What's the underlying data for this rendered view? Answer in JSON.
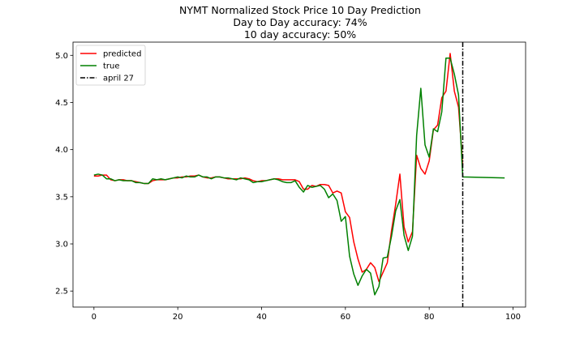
{
  "chart_data": {
    "type": "line",
    "title_lines": [
      "NYMT Normalized Stock Price 10 Day Prediction",
      "Day to Day accuracy: 74%",
      "10 day accuracy: 50%"
    ],
    "xlabel": "",
    "ylabel": "",
    "xlim": [
      -5,
      103
    ],
    "ylim": [
      2.33,
      5.14
    ],
    "xticks": [
      0,
      20,
      40,
      60,
      80,
      100
    ],
    "yticks": [
      2.5,
      3.0,
      3.5,
      4.0,
      4.5,
      5.0
    ],
    "xtick_labels": [
      "0",
      "20",
      "40",
      "60",
      "80",
      "100"
    ],
    "ytick_labels": [
      "2.5",
      "3.0",
      "3.5",
      "4.0",
      "4.5",
      "5.0"
    ],
    "grid": false,
    "legend_position": "top-left",
    "series": [
      {
        "name": "predicted",
        "color": "#ff0000",
        "style": "solid",
        "x": [
          0,
          1,
          2,
          3,
          4,
          5,
          6,
          7,
          8,
          9,
          10,
          11,
          12,
          13,
          14,
          15,
          16,
          17,
          18,
          19,
          20,
          21,
          22,
          23,
          24,
          25,
          26,
          27,
          28,
          29,
          30,
          31,
          32,
          33,
          34,
          35,
          36,
          37,
          38,
          39,
          40,
          41,
          42,
          43,
          44,
          45,
          46,
          47,
          48,
          49,
          50,
          51,
          52,
          53,
          54,
          55,
          56,
          57,
          58,
          59,
          60,
          61,
          62,
          63,
          64,
          65,
          66,
          67,
          68,
          69,
          70,
          71,
          72,
          73,
          74,
          75,
          76,
          77,
          78,
          79,
          80,
          81,
          82,
          83,
          84,
          85,
          86,
          87,
          88
        ],
        "y": [
          3.72,
          3.72,
          3.73,
          3.73,
          3.68,
          3.67,
          3.68,
          3.68,
          3.67,
          3.67,
          3.66,
          3.65,
          3.64,
          3.64,
          3.67,
          3.68,
          3.68,
          3.68,
          3.69,
          3.7,
          3.7,
          3.71,
          3.71,
          3.72,
          3.72,
          3.73,
          3.71,
          3.7,
          3.7,
          3.71,
          3.71,
          3.7,
          3.69,
          3.69,
          3.69,
          3.69,
          3.7,
          3.69,
          3.67,
          3.66,
          3.67,
          3.67,
          3.68,
          3.69,
          3.69,
          3.68,
          3.68,
          3.68,
          3.68,
          3.66,
          3.58,
          3.58,
          3.62,
          3.61,
          3.63,
          3.63,
          3.62,
          3.54,
          3.56,
          3.54,
          3.34,
          3.28,
          3.02,
          2.84,
          2.7,
          2.73,
          2.8,
          2.75,
          2.6,
          2.7,
          2.8,
          3.14,
          3.42,
          3.74,
          3.18,
          3.02,
          3.13,
          3.94,
          3.8,
          3.74,
          3.88,
          4.21,
          4.26,
          4.55,
          4.62,
          5.02,
          4.62,
          4.45,
          3.84
        ]
      },
      {
        "name": "true",
        "color": "#008000",
        "style": "solid",
        "x": [
          0,
          1,
          2,
          3,
          4,
          5,
          6,
          7,
          8,
          9,
          10,
          11,
          12,
          13,
          14,
          15,
          16,
          17,
          18,
          19,
          20,
          21,
          22,
          23,
          24,
          25,
          26,
          27,
          28,
          29,
          30,
          31,
          32,
          33,
          34,
          35,
          36,
          37,
          38,
          39,
          40,
          41,
          42,
          43,
          44,
          45,
          46,
          47,
          48,
          49,
          50,
          51,
          52,
          53,
          54,
          55,
          56,
          57,
          58,
          59,
          60,
          61,
          62,
          63,
          64,
          65,
          66,
          67,
          68,
          69,
          70,
          71,
          72,
          73,
          74,
          75,
          76,
          77,
          78,
          79,
          80,
          81,
          82,
          83,
          84,
          85,
          86,
          87,
          88,
          98
        ],
        "y": [
          3.73,
          3.74,
          3.73,
          3.69,
          3.69,
          3.67,
          3.68,
          3.67,
          3.67,
          3.67,
          3.65,
          3.65,
          3.64,
          3.64,
          3.69,
          3.68,
          3.69,
          3.68,
          3.69,
          3.7,
          3.71,
          3.7,
          3.72,
          3.71,
          3.71,
          3.73,
          3.71,
          3.71,
          3.69,
          3.71,
          3.71,
          3.7,
          3.7,
          3.69,
          3.68,
          3.7,
          3.69,
          3.68,
          3.65,
          3.66,
          3.66,
          3.67,
          3.68,
          3.69,
          3.68,
          3.66,
          3.65,
          3.65,
          3.67,
          3.6,
          3.55,
          3.62,
          3.6,
          3.61,
          3.62,
          3.58,
          3.49,
          3.53,
          3.46,
          3.24,
          3.29,
          2.87,
          2.68,
          2.56,
          2.66,
          2.73,
          2.69,
          2.46,
          2.55,
          2.85,
          2.86,
          3.08,
          3.35,
          3.47,
          3.09,
          2.93,
          3.08,
          4.15,
          4.65,
          4.05,
          3.92,
          4.22,
          4.19,
          4.4,
          4.97,
          4.97,
          4.8,
          4.58,
          3.71,
          3.7
        ]
      },
      {
        "name": "april 27",
        "color": "#000000",
        "style": "dashdot",
        "type": "vline",
        "x": 88
      }
    ]
  }
}
